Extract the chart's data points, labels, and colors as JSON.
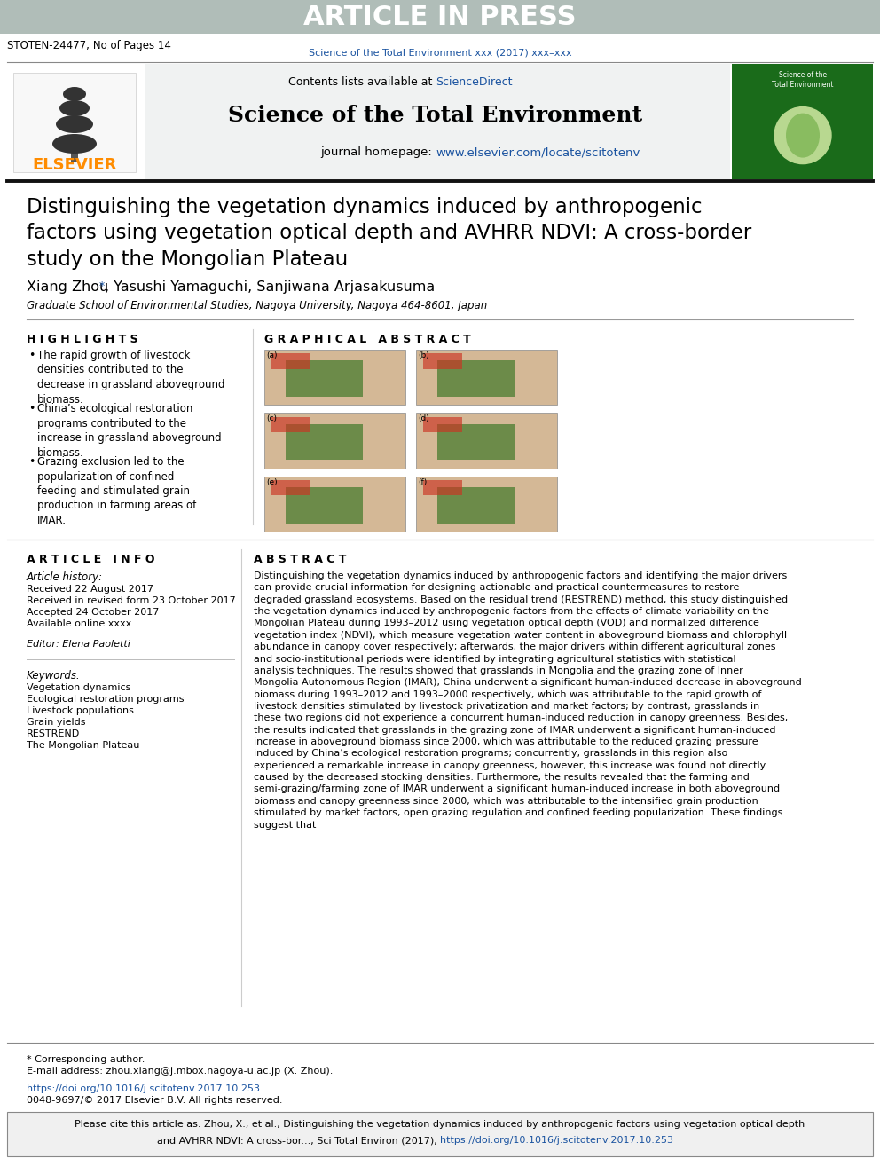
{
  "article_in_press_text": "ARTICLE IN PRESS",
  "article_in_press_bg": "#b0bdb8",
  "stoten_ref": "STOTEN-24477; No of Pages 14",
  "journal_ref_blue": "Science of the Total Environment xxx (2017) xxx–xxx",
  "contents_available": "Contents lists available at ",
  "science_direct": "ScienceDirect",
  "journal_name": "Science of the Total Environment",
  "journal_homepage_text": "journal homepage: ",
  "journal_homepage_url": "www.elsevier.com/locate/scitotenv",
  "elsevier_color": "#FF8C00",
  "blue_link_color": "#1a53a0",
  "header_bg": "#e8ecec",
  "title": "Distinguishing the vegetation dynamics induced by anthropogenic\nfactors using vegetation optical depth and AVHRR NDVI: A cross-border\nstudy on the Mongolian Plateau",
  "authors_part1": "Xiang Zhou ",
  "authors_star": "*",
  "authors_part2": ", Yasushi Yamaguchi, Sanjiwana Arjasakusuma",
  "affiliation": "Graduate School of Environmental Studies, Nagoya University, Nagoya 464-8601, Japan",
  "highlights_title": "H I G H L I G H T S",
  "highlights": [
    "The rapid growth of livestock densities contributed to the decrease in grassland aboveground biomass.",
    "China’s ecological restoration programs contributed to the increase in grassland aboveground biomass.",
    "Grazing exclusion led to the popularization of confined feeding and stimulated grain production in farming areas of IMAR."
  ],
  "graphical_abstract_title": "G R A P H I C A L   A B S T R A C T",
  "article_info_title": "A R T I C L E   I N F O",
  "article_history_title": "Article history:",
  "received_text": "Received 22 August 2017",
  "revised_text": "Received in revised form 23 October 2017",
  "accepted_text": "Accepted 24 October 2017",
  "available_text": "Available online xxxx",
  "editor_text": "Editor: Elena Paoletti",
  "keywords_title": "Keywords:",
  "keywords": [
    "Vegetation dynamics",
    "Ecological restoration programs",
    "Livestock populations",
    "Grain yields",
    "RESTREND",
    "The Mongolian Plateau"
  ],
  "abstract_title": "A B S T R A C T",
  "abstract_text": "Distinguishing the vegetation dynamics induced by anthropogenic factors and identifying the major drivers can provide crucial information for designing actionable and practical countermeasures to restore degraded grassland ecosystems. Based on the residual trend (RESTREND) method, this study distinguished the vegetation dynamics induced by anthropogenic factors from the effects of climate variability on the Mongolian Plateau during 1993–2012 using vegetation optical depth (VOD) and normalized difference vegetation index (NDVI), which measure vegetation water content in aboveground biomass and chlorophyll abundance in canopy cover respectively; afterwards, the major drivers within different agricultural zones and socio-institutional periods were identified by integrating agricultural statistics with statistical analysis techniques. The results showed that grasslands in Mongolia and the grazing zone of Inner Mongolia Autonomous Region (IMAR), China underwent a significant human-induced decrease in aboveground biomass during 1993–2012 and 1993–2000 respectively, which was attributable to the rapid growth of livestock densities stimulated by livestock privatization and market factors; by contrast, grasslands in these two regions did not experience a concurrent human-induced reduction in canopy greenness. Besides, the results indicated that grasslands in the grazing zone of IMAR underwent a significant human-induced increase in aboveground biomass since 2000, which was attributable to the reduced grazing pressure induced by China’s ecological restoration programs; concurrently, grasslands in this region also experienced a remarkable increase in canopy greenness, however, this increase was found not directly caused by the decreased stocking densities. Furthermore, the results revealed that the farming and semi-grazing/farming zone of IMAR underwent a significant human-induced increase in both aboveground biomass and canopy greenness since 2000, which was attributable to the intensified grain production stimulated by market factors, open grazing regulation and confined feeding popularization. These findings suggest that",
  "footer_star": "* Corresponding author.",
  "footer_email": "E-mail address: zhou.xiang@j.mbox.nagoya-u.ac.jp (X. Zhou).",
  "footer_doi": "https://doi.org/10.1016/j.scitotenv.2017.10.253",
  "footer_rights": "0048-9697/© 2017 Elsevier B.V. All rights reserved.",
  "cite_line1": "Please cite this article as: Zhou, X., et al., Distinguishing the vegetation dynamics induced by anthropogenic factors using vegetation optical depth",
  "cite_line2_pre": "and AVHRR NDVI: A cross-bor..., Sci Total Environ (2017), ",
  "cite_line2_url": "https://doi.org/10.1016/j.scitotenv.2017.10.253",
  "page_bg": "#ffffff"
}
